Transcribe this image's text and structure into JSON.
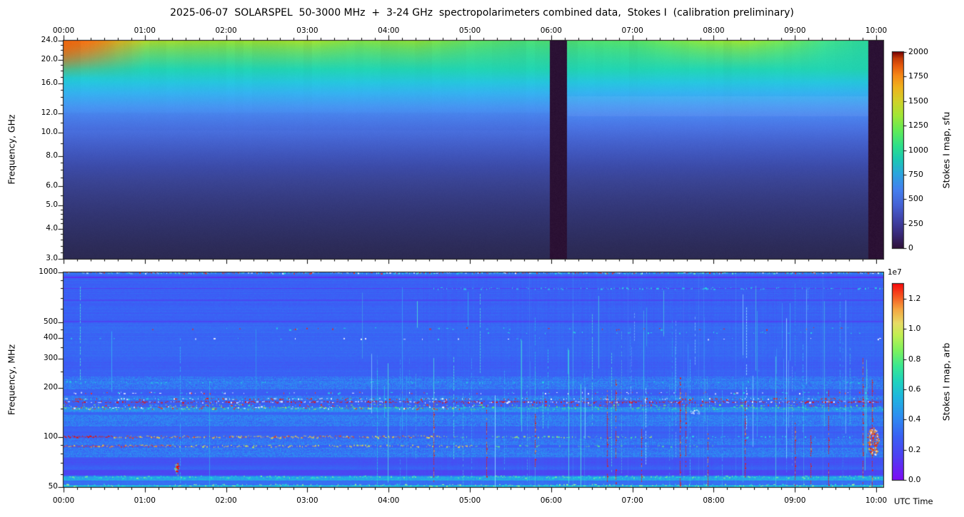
{
  "title": "2025-06-07  SOLARSPEL  50-3000 MHz  +  3-24 GHz  spectropolarimeters combined data,  Stokes I  (calibration preliminary)",
  "x_axis": {
    "label": "UTC Time",
    "hour_labels": [
      "00:00",
      "01:00",
      "02:00",
      "03:00",
      "04:00",
      "05:00",
      "06:00",
      "07:00",
      "08:00",
      "09:00",
      "10:00"
    ],
    "end_hours": 10.087
  },
  "top_panel": {
    "ylabel": "Frequency, GHz",
    "ymin": 3,
    "ymax": 24,
    "yscale": "log",
    "ytick_values": [
      24,
      20,
      16,
      12,
      10,
      8,
      6,
      5,
      4,
      3
    ],
    "ytick_labels": [
      "24.0",
      "20.0",
      "16.0",
      "12.0",
      "10.0",
      "8.0",
      "6.0",
      "5.0",
      "4.0",
      "3.0"
    ],
    "yminor": [
      3.2,
      3.4,
      3.6,
      3.8,
      4.2,
      4.4,
      4.6,
      4.8,
      5.5,
      6.5,
      7,
      7.5,
      9,
      11,
      13,
      14,
      15,
      17,
      18,
      19,
      21,
      22,
      23
    ]
  },
  "top_colorbar": {
    "label": "Stokes I map, sfu",
    "vmin": 0,
    "vmax": 2000,
    "tick_values": [
      0,
      250,
      500,
      750,
      1000,
      1250,
      1500,
      1750,
      2000
    ],
    "tick_labels": [
      "0",
      "250",
      "500",
      "750",
      "1000",
      "1250",
      "1500",
      "1750",
      "2000"
    ]
  },
  "bottom_panel": {
    "ylabel": "Frequency, MHz",
    "ymin": 50,
    "ymax": 1000,
    "yscale": "log",
    "ytick_values": [
      1000,
      500,
      400,
      300,
      200,
      100,
      50
    ],
    "ytick_labels": [
      "1000",
      "500",
      "400",
      "300",
      "200",
      "100",
      "50"
    ],
    "yminor": [
      60,
      70,
      80,
      90,
      150,
      250,
      350,
      450,
      600,
      700,
      800,
      900
    ]
  },
  "bottom_colorbar": {
    "label": "Stokes I map, arb",
    "offset_text": "1e7",
    "vmin": 0,
    "vmax": 1.3,
    "tick_values": [
      0,
      0.2,
      0.4,
      0.6,
      0.8,
      1.0,
      1.2
    ],
    "tick_labels": [
      "0.0",
      "0.2",
      "0.4",
      "0.6",
      "0.8",
      "1.0",
      "1.2"
    ]
  },
  "chart_data": [
    {
      "type": "heatmap",
      "name": "3-24 GHz spectropolarimeter, Stokes I",
      "x_range_hours": [
        0,
        10.087
      ],
      "y_range_ghz": [
        3,
        24
      ],
      "y_scale": "log",
      "colormap": "turbo",
      "value_units": "sfu",
      "value_range": [
        0,
        2000
      ],
      "data_gaps_frac": [
        [
          0.593,
          0.614
        ],
        [
          0.982,
          1.0
        ]
      ],
      "description": "Smooth quiet-Sun microwave spectrum: ~1500-1800 sfu near 24 GHz at 00:00 (orange) decreasing to ~1000-1250 sfu (yellow-green) later; ~750 sfu at 16-20 GHz (teal); ~500 at 12 GHz (light blue); <250 sfu below 6 GHz (dark navy). Near-black vertical data-gap bands at ~06:00 and after ~09:57.",
      "render": {
        "top_stops": [
          [
            0,
            "#ef6a14"
          ],
          [
            0.03,
            "#f08c1c"
          ],
          [
            0.065,
            "#ccd024"
          ],
          [
            0.11,
            "#a6da2c"
          ],
          [
            0.2,
            "#93dc30"
          ],
          [
            0.3,
            "#a2e02c"
          ],
          [
            0.36,
            "#7edc44"
          ],
          [
            0.43,
            "#8ce038"
          ],
          [
            0.5,
            "#60dc60"
          ],
          [
            0.56,
            "#4bdc74"
          ],
          [
            0.62,
            "#4edc70"
          ],
          [
            0.7,
            "#56e066"
          ],
          [
            0.78,
            "#8ae23c"
          ],
          [
            0.83,
            "#9ce632"
          ],
          [
            0.88,
            "#72e254"
          ],
          [
            0.93,
            "#44e08a"
          ],
          [
            0.97,
            "#30dc9c"
          ],
          [
            1,
            "#2eda9e"
          ]
        ],
        "profile_stops": [
          [
            0.13,
            "#22d4b2"
          ],
          [
            0.19,
            "#26c6de"
          ],
          [
            0.24,
            "#35b2f0"
          ],
          [
            0.3,
            "#4697f2"
          ],
          [
            0.345,
            "#4b84ee"
          ],
          [
            0.4,
            "#4a73e2"
          ],
          [
            0.46,
            "#4563cf"
          ],
          [
            0.52,
            "#4056bc"
          ],
          [
            0.58,
            "#3c4ba8"
          ],
          [
            0.645,
            "#3a4494"
          ],
          [
            0.72,
            "#363c82"
          ],
          [
            0.8,
            "#323572"
          ],
          [
            0.88,
            "#2f3064"
          ],
          [
            0.94,
            "#2d2c5a"
          ],
          [
            1,
            "#2c2a52"
          ]
        ],
        "gap_color": "#2b1134",
        "corner_heat_color": "#f26a10",
        "colorbar_stops": [
          [
            0,
            "#30123b"
          ],
          [
            0.07,
            "#392a79"
          ],
          [
            0.15,
            "#4146ad"
          ],
          [
            0.22,
            "#4663d6"
          ],
          [
            0.3,
            "#4481f0"
          ],
          [
            0.38,
            "#2ca6de"
          ],
          [
            0.45,
            "#1cc8b4"
          ],
          [
            0.52,
            "#2ee08c"
          ],
          [
            0.6,
            "#62ec58"
          ],
          [
            0.68,
            "#a4e636"
          ],
          [
            0.75,
            "#d1d22a"
          ],
          [
            0.82,
            "#efb31e"
          ],
          [
            0.88,
            "#f68a18"
          ],
          [
            0.93,
            "#e85c0e"
          ],
          [
            0.97,
            "#c23a06"
          ],
          [
            1,
            "#7a0403"
          ]
        ]
      }
    },
    {
      "type": "heatmap",
      "name": "SOLARSPEL 50-1000 MHz spectropolarimeter, Stokes I",
      "x_range_hours": [
        0,
        10.087
      ],
      "y_range_mhz": [
        50,
        1000
      ],
      "y_scale": "log",
      "colormap": "rainbow",
      "value_units": "arb (x 1e7)",
      "value_range": [
        0,
        1.3
      ],
      "rfi_lines_mhz": [
        995,
        800,
        455,
        163,
        150,
        100,
        88,
        57
      ],
      "description": "Blue quiet background (~0.25e7) with horizontal RFI bands: persistent red dashed line ~163 MHz; green/cyan speckle band 142-152 MHz; FM-band 88-100 MHz solid red/yellow strongest 00:00-04:30; red dash clusters ~455 MHz; cyan bands near 55 MHz; many narrow broadband vertical bursts (cyan/red) after ~04:30, densest 06:30-10:05; red point burst at ~01:23 / 65 MHz; red-orange cluster at ~09:55-10:05 / 90-100 MHz.",
      "render": {
        "background_value": 0.22,
        "rainbow_stops": [
          [
            0,
            "#7d0df5"
          ],
          [
            0.12,
            "#4e41f2"
          ],
          [
            0.22,
            "#3a60f4"
          ],
          [
            0.32,
            "#2e8df2"
          ],
          [
            0.42,
            "#1fb6e0"
          ],
          [
            0.5,
            "#1ed3c0"
          ],
          [
            0.58,
            "#3ae892"
          ],
          [
            0.66,
            "#7df25e"
          ],
          [
            0.74,
            "#c3ef52"
          ],
          [
            0.8,
            "#e8dc66"
          ],
          [
            0.87,
            "#f5a742"
          ],
          [
            0.93,
            "#f55f24"
          ],
          [
            1,
            "#f50d0d"
          ]
        ],
        "bands": [
          [
            945,
            925,
            -0.13
          ],
          [
            810,
            795,
            -0.11
          ],
          [
            690,
            672,
            -0.09
          ],
          [
            512,
            500,
            -0.09
          ],
          [
            1000,
            975,
            0.04
          ],
          [
            500,
            300,
            0.015
          ],
          [
            235,
            195,
            0.05
          ],
          [
            178,
            168,
            0.05
          ],
          [
            152,
            142,
            0.1
          ],
          [
            137,
            116,
            0.06
          ],
          [
            98,
            90,
            0.05
          ],
          [
            86,
            76,
            0.06
          ],
          [
            75,
            67,
            -0.04
          ],
          [
            63,
            59,
            -0.08
          ],
          [
            58,
            54.5,
            0.16
          ],
          [
            54,
            52,
            0.04
          ],
          [
            51.5,
            50,
            0.18
          ]
        ],
        "speckle_rows": [
          [
            995,
            2,
            0.75,
            0,
            1,
            [
              "#25d8e0",
              "#66f2c2",
              "#eef6ff",
              "#ee3322"
            ]
          ],
          [
            800,
            2,
            0.3,
            0.45,
            1,
            [
              "#25d8e0"
            ]
          ],
          [
            455,
            3,
            0.1,
            0.1,
            0.97,
            [
              "#ee2211",
              "#ee2211",
              "#25d8e0"
            ]
          ],
          [
            430,
            2,
            0.12,
            0.5,
            1,
            [
              "#25d8e0"
            ]
          ],
          [
            395,
            2,
            0.06,
            0,
            1,
            [
              "#25d8e0",
              "#ffffff"
            ]
          ],
          [
            215,
            2,
            0.1,
            0,
            1,
            [
              "#25d8e0"
            ]
          ],
          [
            185,
            2,
            0.22,
            0,
            1,
            [
              "#25d8e0",
              "#ffffff",
              "#ee3322"
            ]
          ],
          [
            170,
            2,
            0.45,
            0,
            1,
            [
              "#ee2211",
              "#25d8e0",
              "#ffffff"
            ]
          ],
          [
            163,
            2,
            0.8,
            0,
            1,
            [
              "#ee1100",
              "#ee1100",
              "#ee1100",
              "#ffffff"
            ]
          ],
          [
            156,
            2,
            0.3,
            0,
            1,
            [
              "#ee3322",
              "#25d8e0",
              "#7df25e"
            ]
          ],
          [
            150,
            4,
            0.85,
            0,
            0.5,
            [
              "#2ae0c0",
              "#64e866",
              "#c8f040",
              "#ffffff",
              "#ee3322"
            ]
          ],
          [
            150,
            4,
            0.45,
            0.5,
            1,
            [
              "#2ae0c0",
              "#64e866"
            ]
          ],
          [
            100,
            3,
            1,
            0,
            0.06,
            [
              "#ee1100"
            ]
          ],
          [
            100,
            3,
            0.85,
            0.06,
            0.46,
            [
              "#eede4a",
              "#f0c23a",
              "#ee4411"
            ]
          ],
          [
            100,
            2,
            0.4,
            0.46,
            0.72,
            [
              "#a8e86a",
              "#4ae0b0"
            ]
          ],
          [
            100,
            2,
            0.25,
            0.72,
            0.97,
            [
              "#2ad8e0"
            ]
          ],
          [
            88,
            3,
            0.9,
            0,
            0.13,
            [
              "#ee3311",
              "#f08a2a",
              "#eecc3a"
            ]
          ],
          [
            88,
            3,
            0.55,
            0.13,
            0.5,
            [
              "#e8d84a",
              "#b8e85a"
            ]
          ],
          [
            88,
            2,
            0.25,
            0.5,
            0.8,
            [
              "#55dd99"
            ]
          ],
          [
            57,
            3,
            0.5,
            0,
            1,
            [
              "#28e0d0",
              "#70f0a0"
            ]
          ],
          [
            50.7,
            3,
            0.5,
            0,
            1,
            [
              "#28e0d0",
              "#9ef09a"
            ]
          ]
        ],
        "red_streaks": [
          [
            0.452,
            0.6,
            0.97
          ],
          [
            0.517,
            0.62,
            0.95
          ],
          [
            0.576,
            0.66,
            0.9
          ],
          [
            0.664,
            0.55,
            1
          ],
          [
            0.674,
            0.5,
            1
          ],
          [
            0.706,
            0.72,
            0.98
          ],
          [
            0.753,
            0.47,
            1
          ],
          [
            0.76,
            0.55,
            0.9
          ],
          [
            0.787,
            0.75,
            1
          ],
          [
            0.832,
            0.6,
            0.95
          ],
          [
            0.893,
            0.7,
            1
          ],
          [
            0.912,
            0.75,
            1
          ],
          [
            0.934,
            0.55,
            1
          ],
          [
            0.976,
            0.4,
            1
          ],
          [
            0.987,
            0.5,
            1
          ]
        ],
        "cyan_streak_count": 95,
        "blobs": {
          "left_burst": {
            "t": 0.138,
            "f_mhz": 65
          },
          "mid_cluster": {
            "t": 0.77,
            "f_mhz": 142
          },
          "right_cluster": {
            "t": 0.988,
            "f_mhz": 95
          }
        }
      }
    }
  ]
}
